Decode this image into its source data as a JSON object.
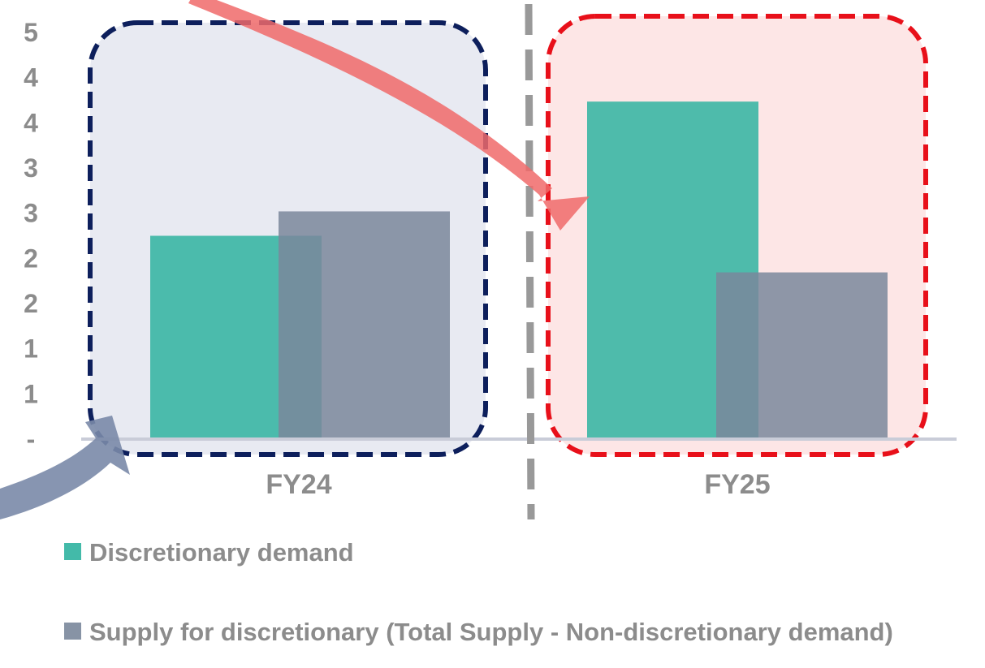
{
  "chart_data": {
    "type": "bar",
    "categories": [
      "FY24",
      "FY25"
    ],
    "series": [
      {
        "name": "Discretionary demand",
        "values": [
          2.5,
          4.15
        ],
        "color": "#2fb3a0"
      },
      {
        "name": "Supply for discretionary (Total Supply - Non-discretionary demand)",
        "values": [
          2.8,
          2.05
        ],
        "color": "#7a879b"
      }
    ],
    "ylim": [
      0,
      5
    ],
    "y_tick_labels": [
      "-",
      "1",
      "1",
      "2",
      "2",
      "3",
      "3",
      "4",
      "4",
      "5"
    ],
    "grid": false,
    "legend_placement": "bottom-left",
    "highlights": [
      {
        "category": "FY24",
        "border_color": "#0d1f5c",
        "fill_color": "#e8eaf2"
      },
      {
        "category": "FY25",
        "border_color": "#e8101a",
        "fill_color": "#fde6e6"
      }
    ],
    "arrow_colors": [
      "#f06a6a",
      "#7a8aa8"
    ],
    "divider_color": "#999999",
    "axis_color": "#c9ccd8"
  }
}
